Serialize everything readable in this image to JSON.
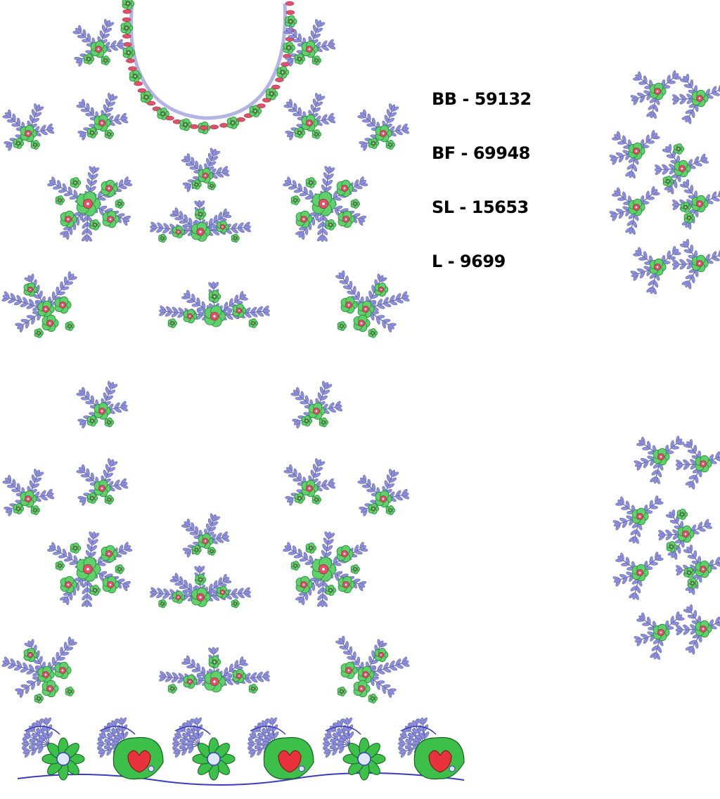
{
  "design_codes": [
    {
      "label": "BB - 59132"
    },
    {
      "label": "BF - 69948"
    },
    {
      "label": "SL - 15653"
    },
    {
      "label": "L - 9699"
    }
  ],
  "colors": {
    "background": "#ffffff",
    "leaf": "#8d8fd8",
    "leaf_stroke": "#5a5cb0",
    "flower": "#5fd06a",
    "flower_stroke": "#1f8a35",
    "flower_center": "#e0506a",
    "neckline": "#b4b4e4",
    "border_line": "#3a3cc0"
  },
  "icons": [
    "embroidery-floral-motif",
    "neckline-motif",
    "sleeve-motif",
    "border-lace-motif"
  ]
}
